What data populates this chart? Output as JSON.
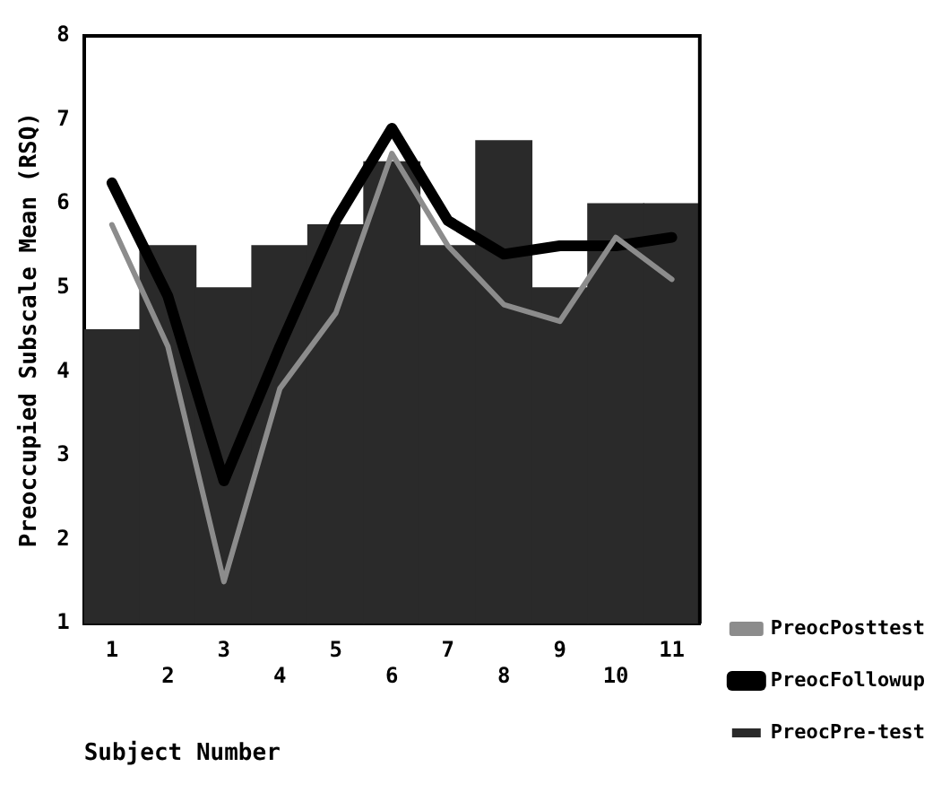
{
  "chart_data": {
    "type": "bar",
    "xlabel": "Subject Number",
    "ylabel": "Preoccupied Subscale Mean (RSQ)",
    "categories": [
      "1",
      "2",
      "3",
      "4",
      "5",
      "6",
      "7",
      "8",
      "9",
      "10",
      "11"
    ],
    "ylim": [
      1,
      8
    ],
    "yticks": [
      1,
      2,
      3,
      4,
      5,
      6,
      7,
      8
    ],
    "grid": false,
    "legend": "right",
    "series": [
      {
        "name": "PreocPosttest",
        "type": "line",
        "color": "#8c8c8c",
        "values": [
          5.75,
          4.3,
          1.5,
          3.8,
          4.7,
          6.6,
          5.5,
          4.8,
          4.6,
          5.6,
          5.1
        ]
      },
      {
        "name": "PreocFollowup",
        "type": "line",
        "color": "#000000",
        "values": [
          6.25,
          4.9,
          2.7,
          4.3,
          5.8,
          6.9,
          5.8,
          5.4,
          5.5,
          5.5,
          5.6
        ]
      },
      {
        "name": "PreocPre-test",
        "color": "#2a2a2a",
        "values": [
          4.5,
          5.5,
          5.0,
          5.5,
          5.75,
          6.5,
          5.5,
          6.75,
          5.0,
          6.0,
          6.0
        ]
      }
    ]
  }
}
